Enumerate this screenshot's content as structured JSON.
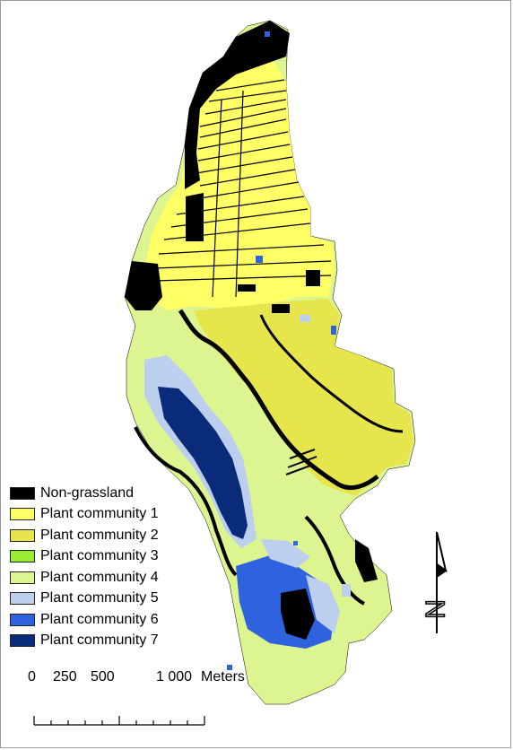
{
  "legend": {
    "items": [
      {
        "label": "Non-grassland",
        "color": "#000000"
      },
      {
        "label": "Plant community 1",
        "color": "#ffff66"
      },
      {
        "label": "Plant community 2",
        "color": "#e6e64c"
      },
      {
        "label": "Plant community 3",
        "color": "#99ee33"
      },
      {
        "label": "Plant community 4",
        "color": "#ddf590"
      },
      {
        "label": "Plant community 5",
        "color": "#bccfee"
      },
      {
        "label": "Plant community 6",
        "color": "#2e62de"
      },
      {
        "label": "Plant community 7",
        "color": "#0a2a7a"
      }
    ]
  },
  "scalebar": {
    "tick_labels": [
      "0",
      "250",
      "500",
      "1 000"
    ],
    "unit": "Meters"
  },
  "north_arrow": {
    "letter": "N"
  }
}
